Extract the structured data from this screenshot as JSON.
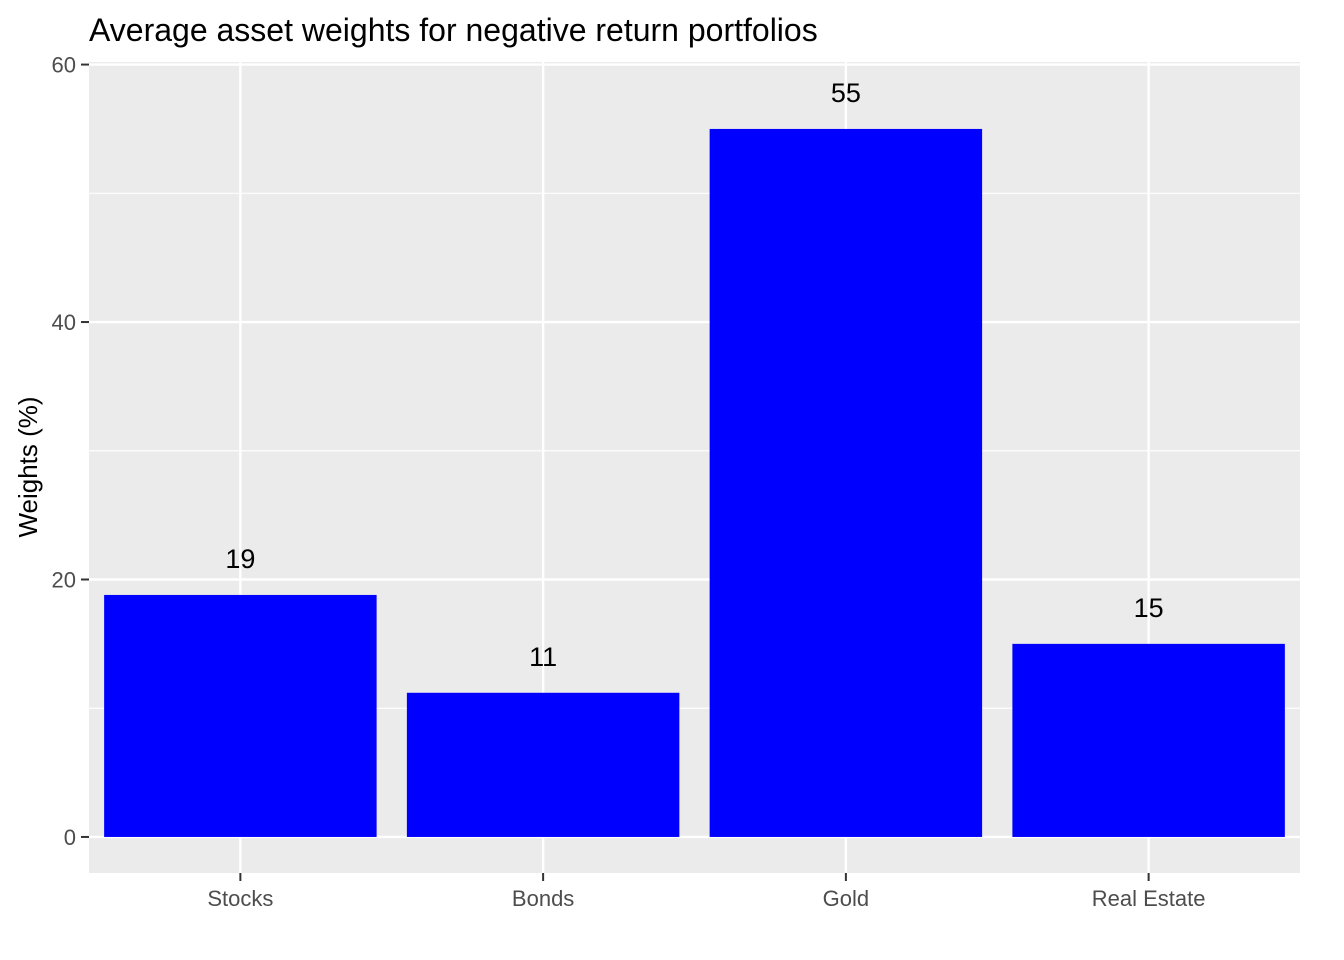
{
  "chart_data": {
    "type": "bar",
    "title": "Average asset weights for negative return portfolios",
    "xlabel": "",
    "ylabel": "Weights (%)",
    "categories": [
      "Stocks",
      "Bonds",
      "Gold",
      "Real Estate"
    ],
    "values": [
      18.8,
      11.2,
      55.0,
      15.0
    ],
    "data_labels": [
      "19",
      "11",
      "55",
      "15"
    ],
    "ylim": [
      -2.8,
      60.2
    ],
    "yticks": [
      0,
      20,
      40,
      60
    ],
    "grid": true,
    "legend": "none",
    "colors": {
      "bar": "#0000ff",
      "panel": "#ebebeb",
      "grid": "#ffffff",
      "tick_text": "#4d4d4d",
      "tick_mark": "#333333"
    }
  }
}
